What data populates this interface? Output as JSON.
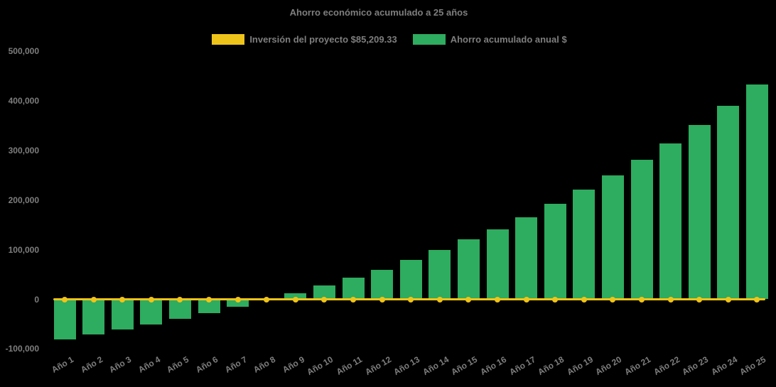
{
  "title": "Ahorro económico acumulado a 25 años",
  "colors": {
    "background": "#000000",
    "text": "#7e7e7e",
    "investment_yellow": "#EFC41A",
    "savings_green": "#2EAC5F"
  },
  "legend": {
    "items": [
      {
        "id": "investment",
        "label": "Inversión del proyecto $85,209.33",
        "color": "#EFC41A",
        "marker": "line"
      },
      {
        "id": "savings",
        "label": "Ahorro acumulado anual $",
        "color": "#2EAC5F",
        "marker": "bar"
      }
    ]
  },
  "chart_data": {
    "type": "bar",
    "title": "Ahorro económico acumulado a 25 años",
    "xlabel": "",
    "ylabel": "",
    "categories": [
      "Año 1",
      "Año 2",
      "Año 3",
      "Año 4",
      "Año 5",
      "Año 6",
      "Año 7",
      "Año 8",
      "Año 9",
      "Año 10",
      "Año 11",
      "Año 12",
      "Año 13",
      "Año 14",
      "Año 15",
      "Año 16",
      "Año 17",
      "Año 18",
      "Año 19",
      "Año 20",
      "Año 21",
      "Año 22",
      "Año 23",
      "Año 24",
      "Año 25"
    ],
    "series": [
      {
        "name": "Ahorro acumulado anual $",
        "type": "bar",
        "color": "#2EAC5F",
        "values": [
          -80500,
          -70500,
          -60500,
          -50500,
          -39500,
          -28000,
          -15500,
          -2500,
          12000,
          28500,
          44000,
          60000,
          79500,
          99500,
          120500,
          141500,
          165500,
          192000,
          221500,
          249500,
          281500,
          314500,
          351500,
          390500,
          432500
        ]
      },
      {
        "name": "Inversión del proyecto $85,209.33",
        "type": "line",
        "color": "#EFC41A",
        "marker": "circle",
        "values": [
          0,
          0,
          0,
          0,
          0,
          0,
          0,
          0,
          0,
          0,
          0,
          0,
          0,
          0,
          0,
          0,
          0,
          0,
          0,
          0,
          0,
          0,
          0,
          0,
          0
        ]
      }
    ],
    "yticks": [
      500000,
      400000,
      300000,
      200000,
      100000,
      0,
      -100000
    ],
    "ylim": [
      -100000,
      500000
    ],
    "grid": false,
    "legend_position": "top-center",
    "background": "#000000",
    "text_color": "#7e7e7e"
  }
}
